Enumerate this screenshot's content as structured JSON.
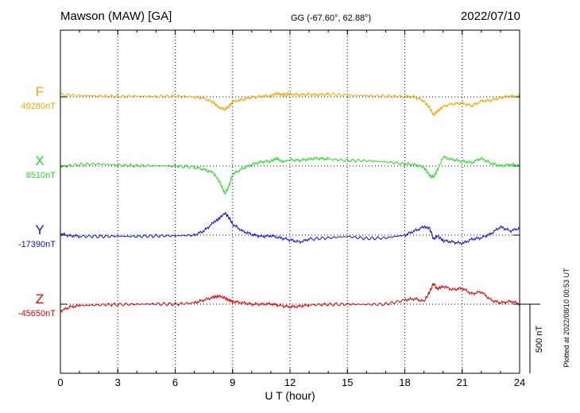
{
  "header": {
    "station": "Mawson (MAW)  [GA]",
    "coords": "GG (-67.60°,  62.88°)",
    "date": "2022/07/10"
  },
  "side_note": "Plotted at 2022/08/10 00:53 UT",
  "scale_label": "500 nT",
  "chart_data": {
    "type": "line",
    "xlabel": "U T (hour)",
    "xlim": [
      0,
      24
    ],
    "x_ticks": [
      "0",
      "3",
      "6",
      "9",
      "12",
      "15",
      "18",
      "21",
      "24"
    ],
    "scale_nT": 500,
    "series": [
      {
        "name": "F",
        "baseline_label": "49280nT",
        "baseline": 49280,
        "color": "#f0a800",
        "x": [
          0,
          1,
          2,
          3,
          4,
          5,
          6,
          7,
          7.5,
          8,
          8.3,
          8.6,
          8.8,
          9,
          9.5,
          10,
          10.5,
          11,
          11.3,
          11.6,
          12,
          12.5,
          13,
          13.5,
          14,
          15,
          16,
          17,
          18,
          18.5,
          19,
          19.3,
          19.5,
          19.7,
          20,
          20.5,
          21,
          21.5,
          22,
          22.5,
          23,
          23.5,
          24
        ],
        "values": [
          49295,
          49290,
          49287,
          49283,
          49285,
          49283,
          49285,
          49280,
          49270,
          49240,
          49200,
          49190,
          49210,
          49245,
          49260,
          49278,
          49283,
          49290,
          49305,
          49296,
          49300,
          49295,
          49298,
          49295,
          49300,
          49292,
          49290,
          49285,
          49283,
          49280,
          49250,
          49200,
          49150,
          49175,
          49210,
          49230,
          49235,
          49215,
          49250,
          49255,
          49275,
          49285,
          49283
        ]
      },
      {
        "name": "X",
        "baseline_label": "6510nT",
        "baseline": 6510,
        "color": "#22dd22",
        "x": [
          0,
          1,
          2,
          3,
          4,
          5,
          6,
          7,
          7.5,
          8,
          8.3,
          8.6,
          8.8,
          9,
          9.5,
          10,
          10.5,
          11,
          11.3,
          11.6,
          12,
          12.5,
          13,
          13.5,
          14,
          15,
          16,
          17,
          18,
          18.5,
          19,
          19.3,
          19.5,
          19.7,
          20,
          20.5,
          21,
          21.5,
          22,
          22.5,
          23,
          23.5,
          24
        ],
        "values": [
          6505,
          6520,
          6525,
          6517,
          6512,
          6512,
          6510,
          6500,
          6485,
          6460,
          6400,
          6310,
          6360,
          6450,
          6490,
          6520,
          6540,
          6545,
          6565,
          6540,
          6555,
          6550,
          6560,
          6565,
          6560,
          6550,
          6548,
          6540,
          6525,
          6520,
          6500,
          6440,
          6430,
          6480,
          6575,
          6555,
          6545,
          6535,
          6565,
          6530,
          6510,
          6520,
          6515
        ]
      },
      {
        "name": "Y",
        "baseline_label": "-17390nT",
        "baseline": -17390,
        "color": "#1010dd",
        "x": [
          0,
          0.5,
          1,
          2,
          3,
          4,
          5,
          6,
          7,
          7.5,
          8,
          8.3,
          8.6,
          8.8,
          9,
          9.5,
          10,
          10.5,
          11,
          11.5,
          12,
          12.5,
          13,
          14,
          15,
          16,
          17,
          18,
          18.5,
          19,
          19.3,
          19.5,
          19.7,
          20,
          20.5,
          21,
          21.5,
          22,
          22.5,
          23,
          23.5,
          24
        ],
        "values": [
          -17380,
          -17395,
          -17398,
          -17400,
          -17398,
          -17400,
          -17396,
          -17395,
          -17390,
          -17360,
          -17300,
          -17270,
          -17230,
          -17260,
          -17310,
          -17360,
          -17385,
          -17400,
          -17395,
          -17410,
          -17425,
          -17440,
          -17420,
          -17410,
          -17400,
          -17415,
          -17410,
          -17390,
          -17360,
          -17330,
          -17340,
          -17420,
          -17395,
          -17430,
          -17440,
          -17450,
          -17420,
          -17410,
          -17380,
          -17330,
          -17360,
          -17340
        ]
      },
      {
        "name": "Z",
        "baseline_label": "-45650nT",
        "baseline": -45650,
        "color": "#e00000",
        "x": [
          0,
          0.5,
          1,
          2,
          3,
          4,
          5,
          6,
          7,
          7.5,
          8,
          8.3,
          8.6,
          8.8,
          9,
          9.5,
          10,
          10.5,
          11,
          11.5,
          12,
          12.5,
          13,
          14,
          15,
          16,
          17,
          18,
          18.5,
          19,
          19.3,
          19.5,
          19.7,
          20,
          20.5,
          21,
          21.5,
          22,
          22.5,
          23,
          23.5,
          24
        ],
        "values": [
          -45700,
          -45670,
          -45660,
          -45655,
          -45652,
          -45650,
          -45648,
          -45650,
          -45640,
          -45620,
          -45600,
          -45590,
          -45605,
          -45620,
          -45630,
          -45640,
          -45650,
          -45650,
          -45648,
          -45660,
          -45670,
          -45665,
          -45655,
          -45652,
          -45650,
          -45652,
          -45650,
          -45620,
          -45610,
          -45630,
          -45560,
          -45500,
          -45540,
          -45520,
          -45545,
          -45535,
          -45575,
          -45560,
          -45620,
          -45640,
          -45630,
          -45645
        ]
      }
    ]
  }
}
